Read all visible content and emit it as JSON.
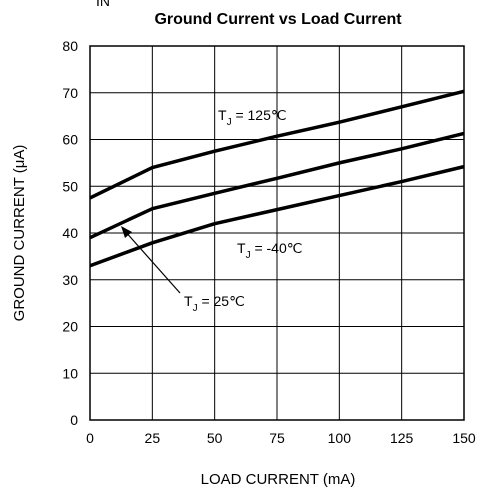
{
  "chart_data": {
    "type": "line",
    "title": "Ground Current vs Load Current",
    "top_fragment": "IN",
    "xlabel": "LOAD CURRENT (mA)",
    "ylabel": "GROUND CURRENT (μA)",
    "xlim": [
      0,
      150
    ],
    "ylim": [
      0,
      80
    ],
    "x_ticks": [
      0,
      25,
      50,
      75,
      100,
      125,
      150
    ],
    "y_ticks": [
      0,
      10,
      20,
      30,
      40,
      50,
      60,
      70,
      80
    ],
    "grid": true,
    "series": [
      {
        "name": "TJ = 125°C",
        "x": [
          0,
          25,
          50,
          75,
          100,
          125,
          150
        ],
        "y": [
          47.5,
          54,
          57.5,
          60.7,
          63.7,
          67,
          70.3
        ]
      },
      {
        "name": "TJ = 25°C",
        "x": [
          0,
          25,
          50,
          75,
          100,
          125,
          150
        ],
        "y": [
          39,
          45.2,
          48.5,
          51.7,
          55,
          58,
          61.3
        ]
      },
      {
        "name": "TJ = -40°C",
        "x": [
          0,
          25,
          50,
          75,
          100,
          125,
          150
        ],
        "y": [
          33,
          37.9,
          42,
          45,
          48,
          51,
          54.2
        ]
      }
    ],
    "annotations": [
      {
        "main": "T",
        "sub": "J",
        "rest": " = 125℃"
      },
      {
        "main": "T",
        "sub": "J",
        "rest": " = -40℃"
      },
      {
        "main": "T",
        "sub": "J",
        "rest": " = 25℃"
      }
    ]
  }
}
